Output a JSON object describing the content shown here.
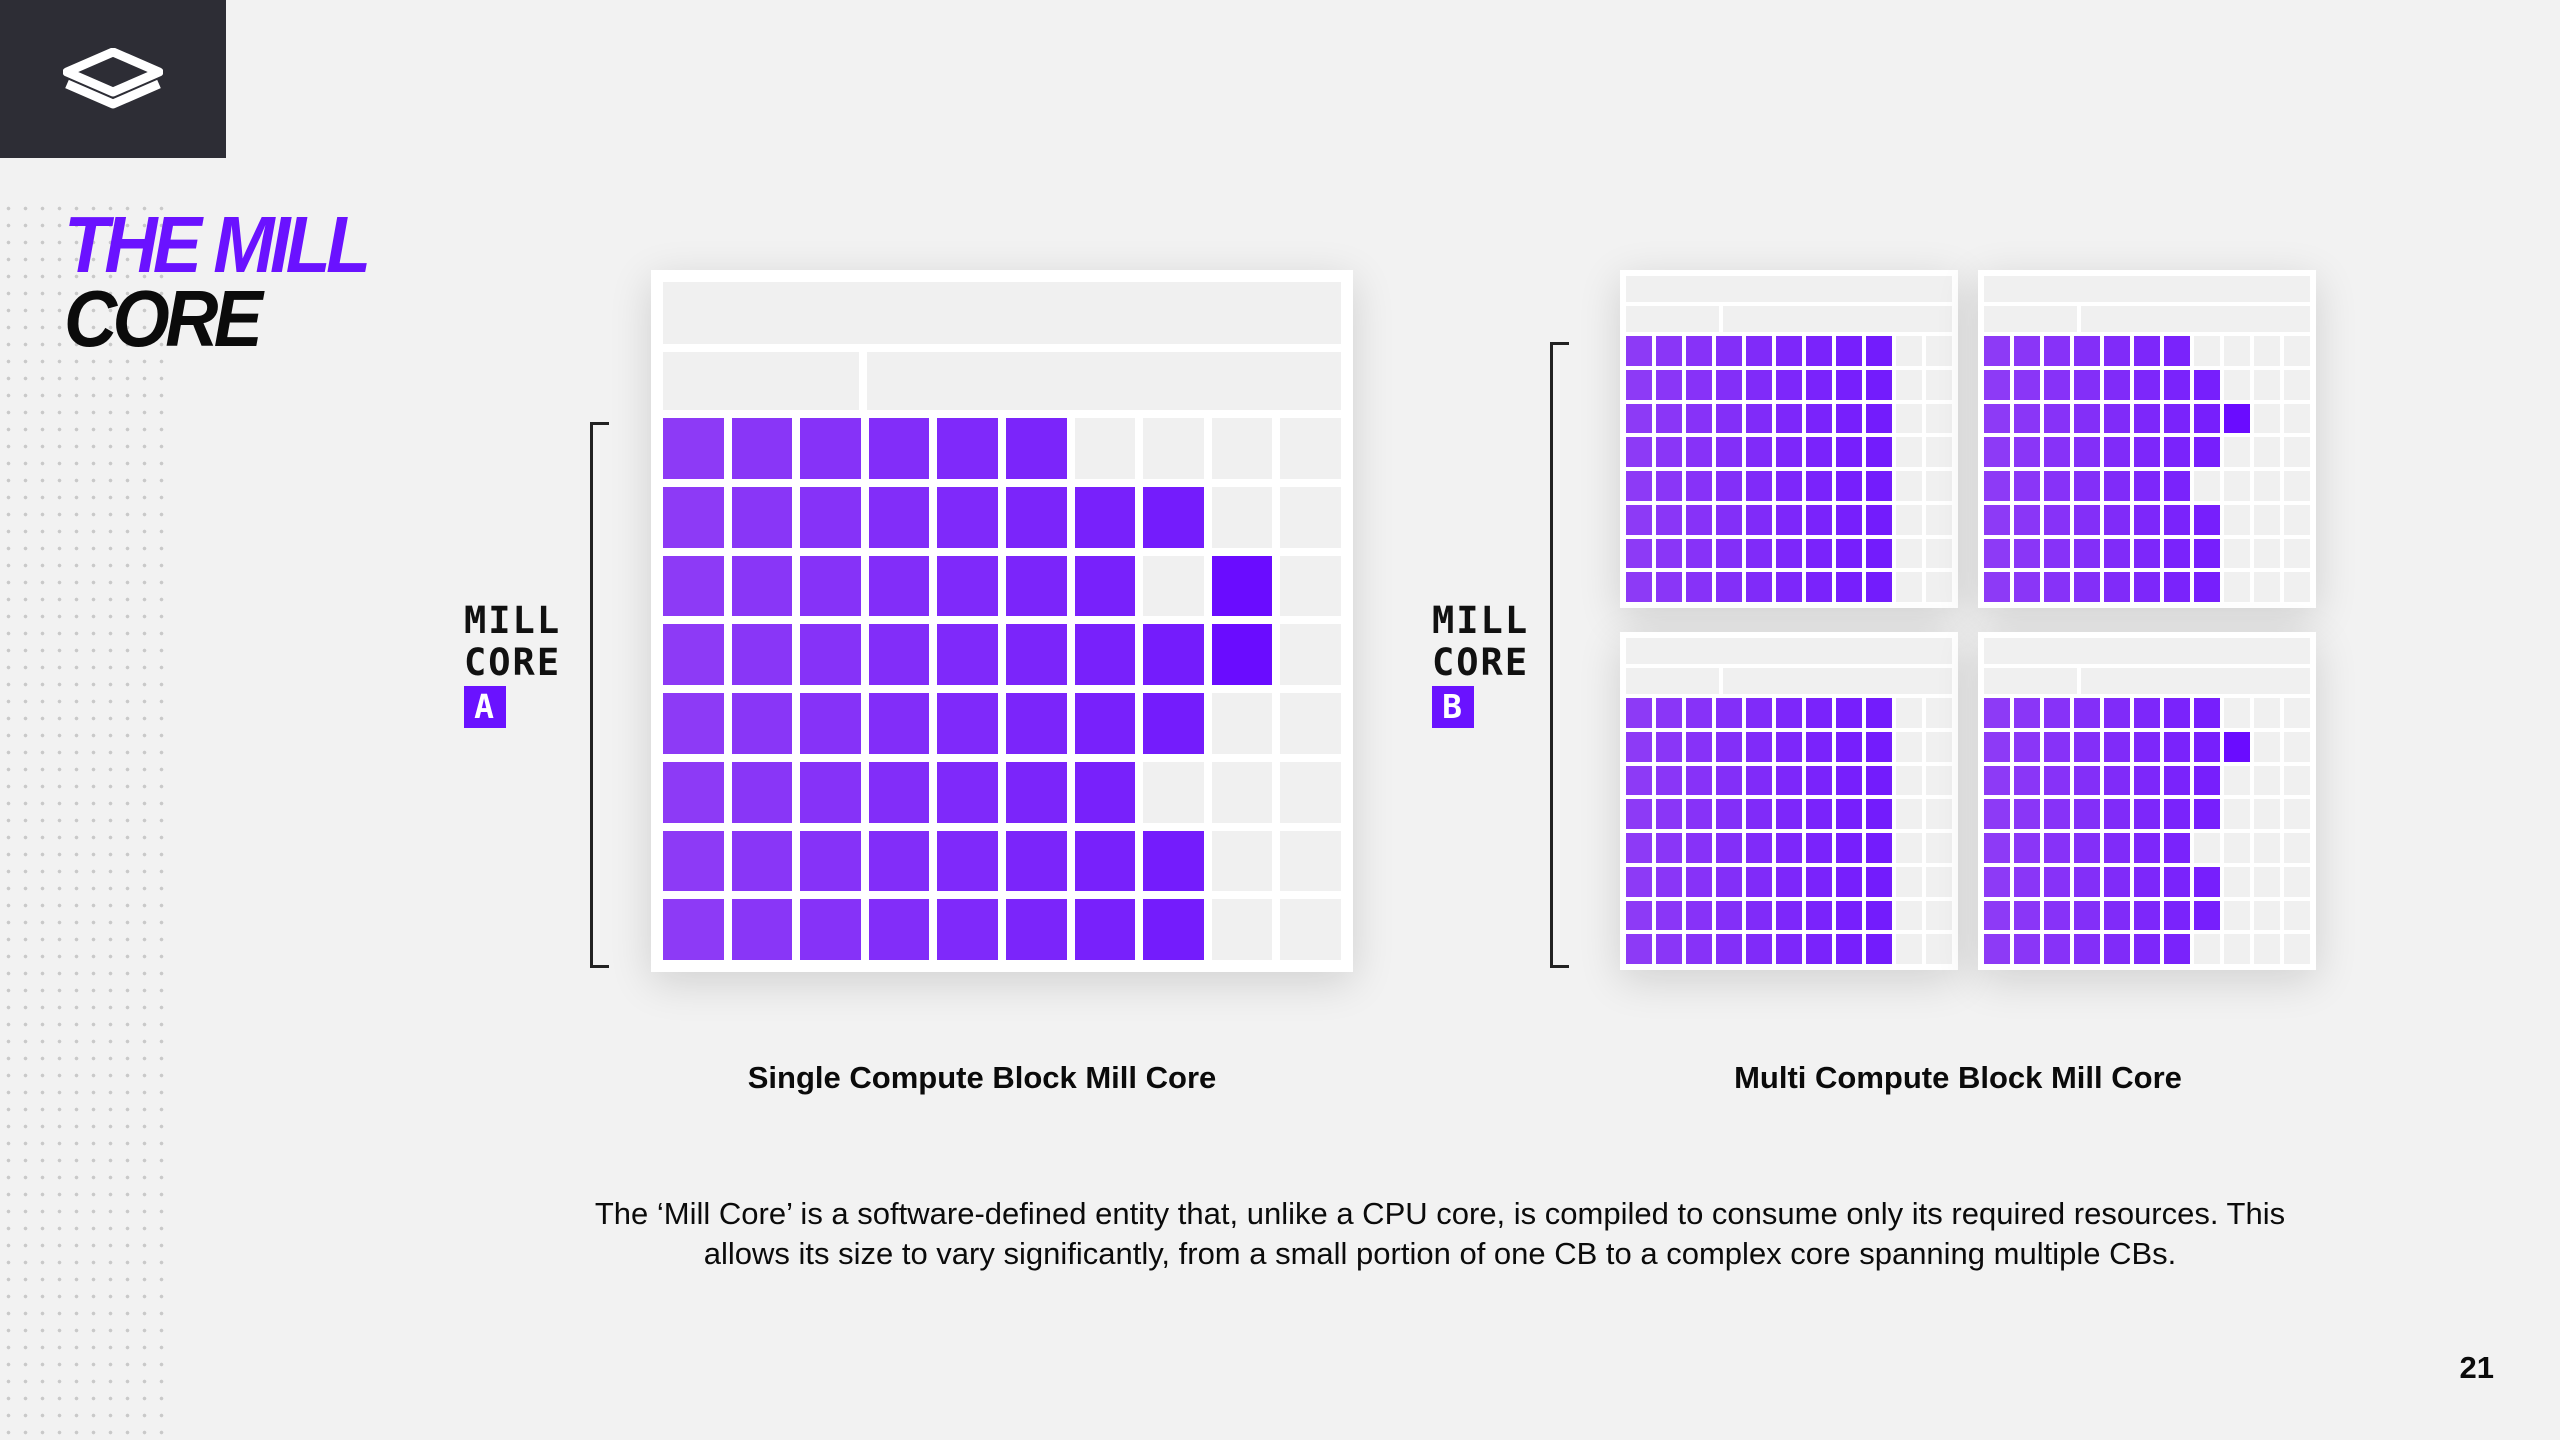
{
  "slide": {
    "title_line1": "THE MILL",
    "title_line2": "CORE",
    "logo": "layered-diamond-logo",
    "page_number": "21"
  },
  "labels": {
    "core_a": {
      "line1": "MILL",
      "line2": "CORE",
      "badge": "A"
    },
    "core_b": {
      "line1": "MILL",
      "line2": "CORE",
      "badge": "B"
    }
  },
  "captions": {
    "single": "Single Compute Block Mill Core",
    "multi": "Multi Compute Block Mill Core"
  },
  "description": {
    "line1": "The ‘Mill Core’ is a software-defined entity that, unlike a CPU core, is compiled to consume only its required resources. This",
    "line2": "allows its size to vary significantly, from a small portion of one CB to a complex core spanning multiple CBs."
  },
  "colors": {
    "accent": "#6a12ff",
    "filled_cell": "#8a35f5",
    "filled_cell_deep": "#6a0cff",
    "empty_cell": "#f0f0f0",
    "block_bg": "#ffffff"
  },
  "single_block": {
    "rows": [
      [
        1,
        1,
        1,
        1,
        1,
        1,
        0,
        0,
        0,
        0
      ],
      [
        1,
        1,
        1,
        1,
        1,
        1,
        1,
        1,
        0,
        0
      ],
      [
        1,
        1,
        1,
        1,
        1,
        1,
        1,
        0,
        2,
        0
      ],
      [
        1,
        1,
        1,
        1,
        1,
        1,
        1,
        1,
        2,
        0
      ],
      [
        1,
        1,
        1,
        1,
        1,
        1,
        1,
        1,
        0,
        0
      ],
      [
        1,
        1,
        1,
        1,
        1,
        1,
        1,
        0,
        0,
        0
      ],
      [
        1,
        1,
        1,
        1,
        1,
        1,
        1,
        1,
        0,
        0
      ],
      [
        1,
        1,
        1,
        1,
        1,
        1,
        1,
        1,
        0,
        0
      ]
    ]
  },
  "multi_blocks": [
    {
      "rows": [
        [
          1,
          1,
          1,
          1,
          1,
          1,
          1,
          1,
          1,
          0,
          0
        ],
        [
          1,
          1,
          1,
          1,
          1,
          1,
          1,
          1,
          1,
          0,
          0
        ],
        [
          1,
          1,
          1,
          1,
          1,
          1,
          1,
          1,
          1,
          0,
          0
        ],
        [
          1,
          1,
          1,
          1,
          1,
          1,
          1,
          1,
          1,
          0,
          0
        ],
        [
          1,
          1,
          1,
          1,
          1,
          1,
          1,
          1,
          1,
          0,
          0
        ],
        [
          1,
          1,
          1,
          1,
          1,
          1,
          1,
          1,
          1,
          0,
          0
        ],
        [
          1,
          1,
          1,
          1,
          1,
          1,
          1,
          1,
          1,
          0,
          0
        ],
        [
          1,
          1,
          1,
          1,
          1,
          1,
          1,
          1,
          1,
          0,
          0
        ]
      ]
    },
    {
      "rows": [
        [
          1,
          1,
          1,
          1,
          1,
          1,
          1,
          0,
          0,
          0,
          0
        ],
        [
          1,
          1,
          1,
          1,
          1,
          1,
          1,
          1,
          0,
          0,
          0
        ],
        [
          1,
          1,
          1,
          1,
          1,
          1,
          1,
          1,
          2,
          0,
          0
        ],
        [
          1,
          1,
          1,
          1,
          1,
          1,
          1,
          1,
          0,
          0,
          0
        ],
        [
          1,
          1,
          1,
          1,
          1,
          1,
          1,
          0,
          0,
          0,
          0
        ],
        [
          1,
          1,
          1,
          1,
          1,
          1,
          1,
          1,
          0,
          0,
          0
        ],
        [
          1,
          1,
          1,
          1,
          1,
          1,
          1,
          1,
          0,
          0,
          0
        ],
        [
          1,
          1,
          1,
          1,
          1,
          1,
          1,
          1,
          0,
          0,
          0
        ]
      ]
    },
    {
      "rows": [
        [
          1,
          1,
          1,
          1,
          1,
          1,
          1,
          1,
          1,
          0,
          0
        ],
        [
          1,
          1,
          1,
          1,
          1,
          1,
          1,
          1,
          1,
          0,
          0
        ],
        [
          1,
          1,
          1,
          1,
          1,
          1,
          1,
          1,
          1,
          0,
          0
        ],
        [
          1,
          1,
          1,
          1,
          1,
          1,
          1,
          1,
          1,
          0,
          0
        ],
        [
          1,
          1,
          1,
          1,
          1,
          1,
          1,
          1,
          1,
          0,
          0
        ],
        [
          1,
          1,
          1,
          1,
          1,
          1,
          1,
          1,
          1,
          0,
          0
        ],
        [
          1,
          1,
          1,
          1,
          1,
          1,
          1,
          1,
          1,
          0,
          0
        ],
        [
          1,
          1,
          1,
          1,
          1,
          1,
          1,
          1,
          1,
          0,
          0
        ]
      ]
    },
    {
      "rows": [
        [
          1,
          1,
          1,
          1,
          1,
          1,
          1,
          1,
          0,
          0,
          0
        ],
        [
          1,
          1,
          1,
          1,
          1,
          1,
          1,
          1,
          2,
          0,
          0
        ],
        [
          1,
          1,
          1,
          1,
          1,
          1,
          1,
          1,
          0,
          0,
          0
        ],
        [
          1,
          1,
          1,
          1,
          1,
          1,
          1,
          1,
          0,
          0,
          0
        ],
        [
          1,
          1,
          1,
          1,
          1,
          1,
          1,
          0,
          0,
          0,
          0
        ],
        [
          1,
          1,
          1,
          1,
          1,
          1,
          1,
          1,
          0,
          0,
          0
        ],
        [
          1,
          1,
          1,
          1,
          1,
          1,
          1,
          1,
          0,
          0,
          0
        ],
        [
          1,
          1,
          1,
          1,
          1,
          1,
          1,
          0,
          0,
          0,
          0
        ]
      ]
    }
  ]
}
